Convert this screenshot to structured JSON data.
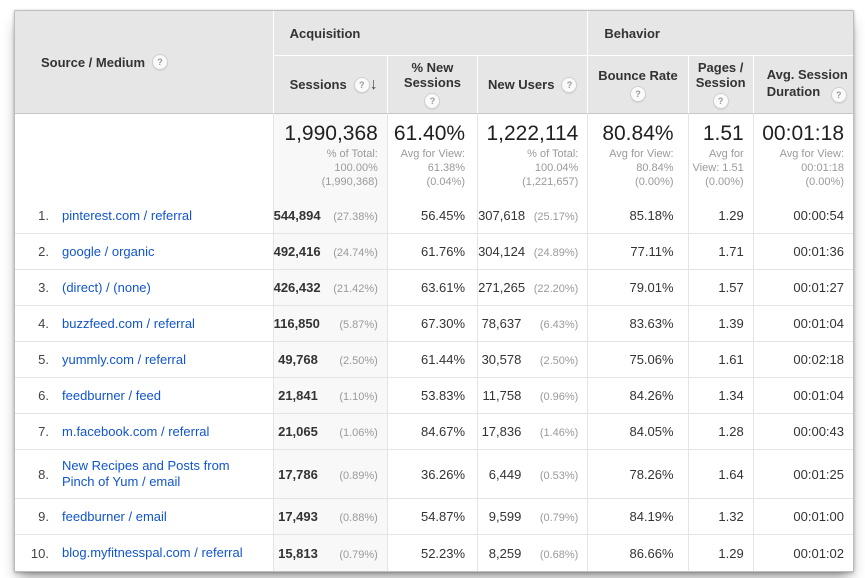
{
  "icons": {
    "help": "?",
    "sort_desc": "↓"
  },
  "colors": {
    "link_blue": "#1155cc",
    "header_bg": "#e6e6e6",
    "sorted_column_bg": "#f8f8f8",
    "secondary_text": "#9a9a9a"
  },
  "header": {
    "corner_label": "Source / Medium",
    "group_acquisition": "Acquisition",
    "group_behavior": "Behavior",
    "columns": {
      "sessions": "Sessions",
      "new_sessions": "% New Sessions",
      "new_users": "New Users",
      "bounce_rate": "Bounce Rate",
      "pages_session_line1": "Pages /",
      "pages_session_line2": "Session",
      "avg_duration_line1": "Avg. Session",
      "avg_duration_line2": "Duration"
    }
  },
  "totals": {
    "sessions": {
      "value": "1,990,368",
      "sub1": "% of Total:",
      "sub2": "100.00%",
      "sub3": "(1,990,368)"
    },
    "new_sessions": {
      "value": "61.40%",
      "sub1": "Avg for View:",
      "sub2": "61.38%",
      "sub3": "(0.04%)"
    },
    "new_users": {
      "value": "1,222,114",
      "sub1": "% of Total:",
      "sub2": "100.04%",
      "sub3": "(1,221,657)"
    },
    "bounce_rate": {
      "value": "80.84%",
      "sub1": "Avg for View:",
      "sub2": "80.84%",
      "sub3": "(0.00%)"
    },
    "pages_session": {
      "value": "1.51",
      "sub1": "Avg for",
      "sub2": "View: 1.51",
      "sub3": "(0.00%)"
    },
    "avg_duration": {
      "value": "00:01:18",
      "sub1": "Avg for View:",
      "sub2": "00:01:18",
      "sub3": "(0.00%)"
    }
  },
  "rows": [
    {
      "rank": "1.",
      "source": "pinterest.com / referral",
      "sessions": "544,894",
      "sessions_pct": "(27.38%)",
      "new_sessions": "56.45%",
      "new_users": "307,618",
      "new_users_pct": "(25.17%)",
      "bounce_rate": "85.18%",
      "pages_session": "1.29",
      "avg_duration": "00:00:54"
    },
    {
      "rank": "2.",
      "source": "google / organic",
      "sessions": "492,416",
      "sessions_pct": "(24.74%)",
      "new_sessions": "61.76%",
      "new_users": "304,124",
      "new_users_pct": "(24.89%)",
      "bounce_rate": "77.11%",
      "pages_session": "1.71",
      "avg_duration": "00:01:36"
    },
    {
      "rank": "3.",
      "source": "(direct) / (none)",
      "sessions": "426,432",
      "sessions_pct": "(21.42%)",
      "new_sessions": "63.61%",
      "new_users": "271,265",
      "new_users_pct": "(22.20%)",
      "bounce_rate": "79.01%",
      "pages_session": "1.57",
      "avg_duration": "00:01:27"
    },
    {
      "rank": "4.",
      "source": "buzzfeed.com / referral",
      "sessions": "116,850",
      "sessions_pct": "(5.87%)",
      "new_sessions": "67.30%",
      "new_users": "78,637",
      "new_users_pct": "(6.43%)",
      "bounce_rate": "83.63%",
      "pages_session": "1.39",
      "avg_duration": "00:01:04"
    },
    {
      "rank": "5.",
      "source": "yummly.com / referral",
      "sessions": "49,768",
      "sessions_pct": "(2.50%)",
      "new_sessions": "61.44%",
      "new_users": "30,578",
      "new_users_pct": "(2.50%)",
      "bounce_rate": "75.06%",
      "pages_session": "1.61",
      "avg_duration": "00:02:18"
    },
    {
      "rank": "6.",
      "source": "feedburner / feed",
      "sessions": "21,841",
      "sessions_pct": "(1.10%)",
      "new_sessions": "53.83%",
      "new_users": "11,758",
      "new_users_pct": "(0.96%)",
      "bounce_rate": "84.26%",
      "pages_session": "1.34",
      "avg_duration": "00:01:04"
    },
    {
      "rank": "7.",
      "source": "m.facebook.com / referral",
      "sessions": "21,065",
      "sessions_pct": "(1.06%)",
      "new_sessions": "84.67%",
      "new_users": "17,836",
      "new_users_pct": "(1.46%)",
      "bounce_rate": "84.05%",
      "pages_session": "1.28",
      "avg_duration": "00:00:43"
    },
    {
      "rank": "8.",
      "source": "New Recipes and Posts from Pinch of Yum / email",
      "sessions": "17,786",
      "sessions_pct": "(0.89%)",
      "new_sessions": "36.26%",
      "new_users": "6,449",
      "new_users_pct": "(0.53%)",
      "bounce_rate": "78.26%",
      "pages_session": "1.64",
      "avg_duration": "00:01:25"
    },
    {
      "rank": "9.",
      "source": "feedburner / email",
      "sessions": "17,493",
      "sessions_pct": "(0.88%)",
      "new_sessions": "54.87%",
      "new_users": "9,599",
      "new_users_pct": "(0.79%)",
      "bounce_rate": "84.19%",
      "pages_session": "1.32",
      "avg_duration": "00:01:00"
    },
    {
      "rank": "10.",
      "source": "blog.myfitnesspal.com / referral",
      "sessions": "15,813",
      "sessions_pct": "(0.79%)",
      "new_sessions": "52.23%",
      "new_users": "8,259",
      "new_users_pct": "(0.68%)",
      "bounce_rate": "86.66%",
      "pages_session": "1.29",
      "avg_duration": "00:01:02"
    }
  ]
}
